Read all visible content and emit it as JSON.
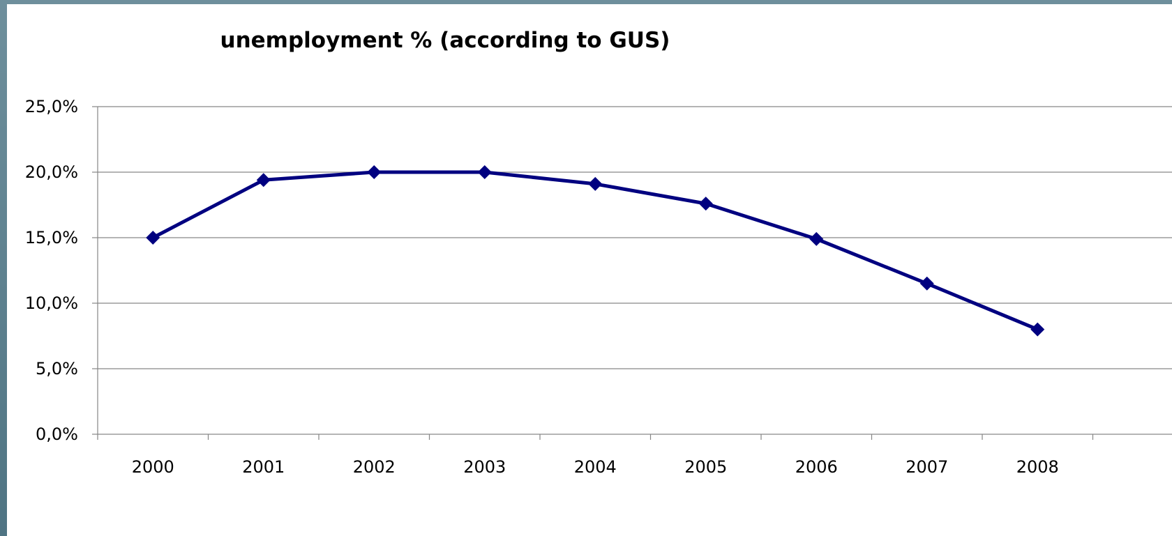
{
  "chart_data": {
    "type": "line",
    "title": "unemployment % (according to GUS)",
    "xlabel": "",
    "ylabel": "",
    "categories": [
      "2000",
      "2001",
      "2002",
      "2003",
      "2004",
      "2005",
      "2006",
      "2007",
      "2008"
    ],
    "series": [
      {
        "values": [
          15.0,
          19.4,
          20.0,
          20.0,
          19.1,
          17.6,
          14.9,
          11.5,
          8.0
        ],
        "color": "#000080",
        "marker": "diamond"
      }
    ],
    "y_ticks": [
      "0,0%",
      "5,0%",
      "10,0%",
      "15,0%",
      "20,0%",
      "25,0%"
    ],
    "ylim": [
      0,
      25
    ],
    "grid": true,
    "legend": "none"
  },
  "colors": {
    "series": "#000080",
    "grid": "#868686",
    "frame": "#4f7483"
  }
}
